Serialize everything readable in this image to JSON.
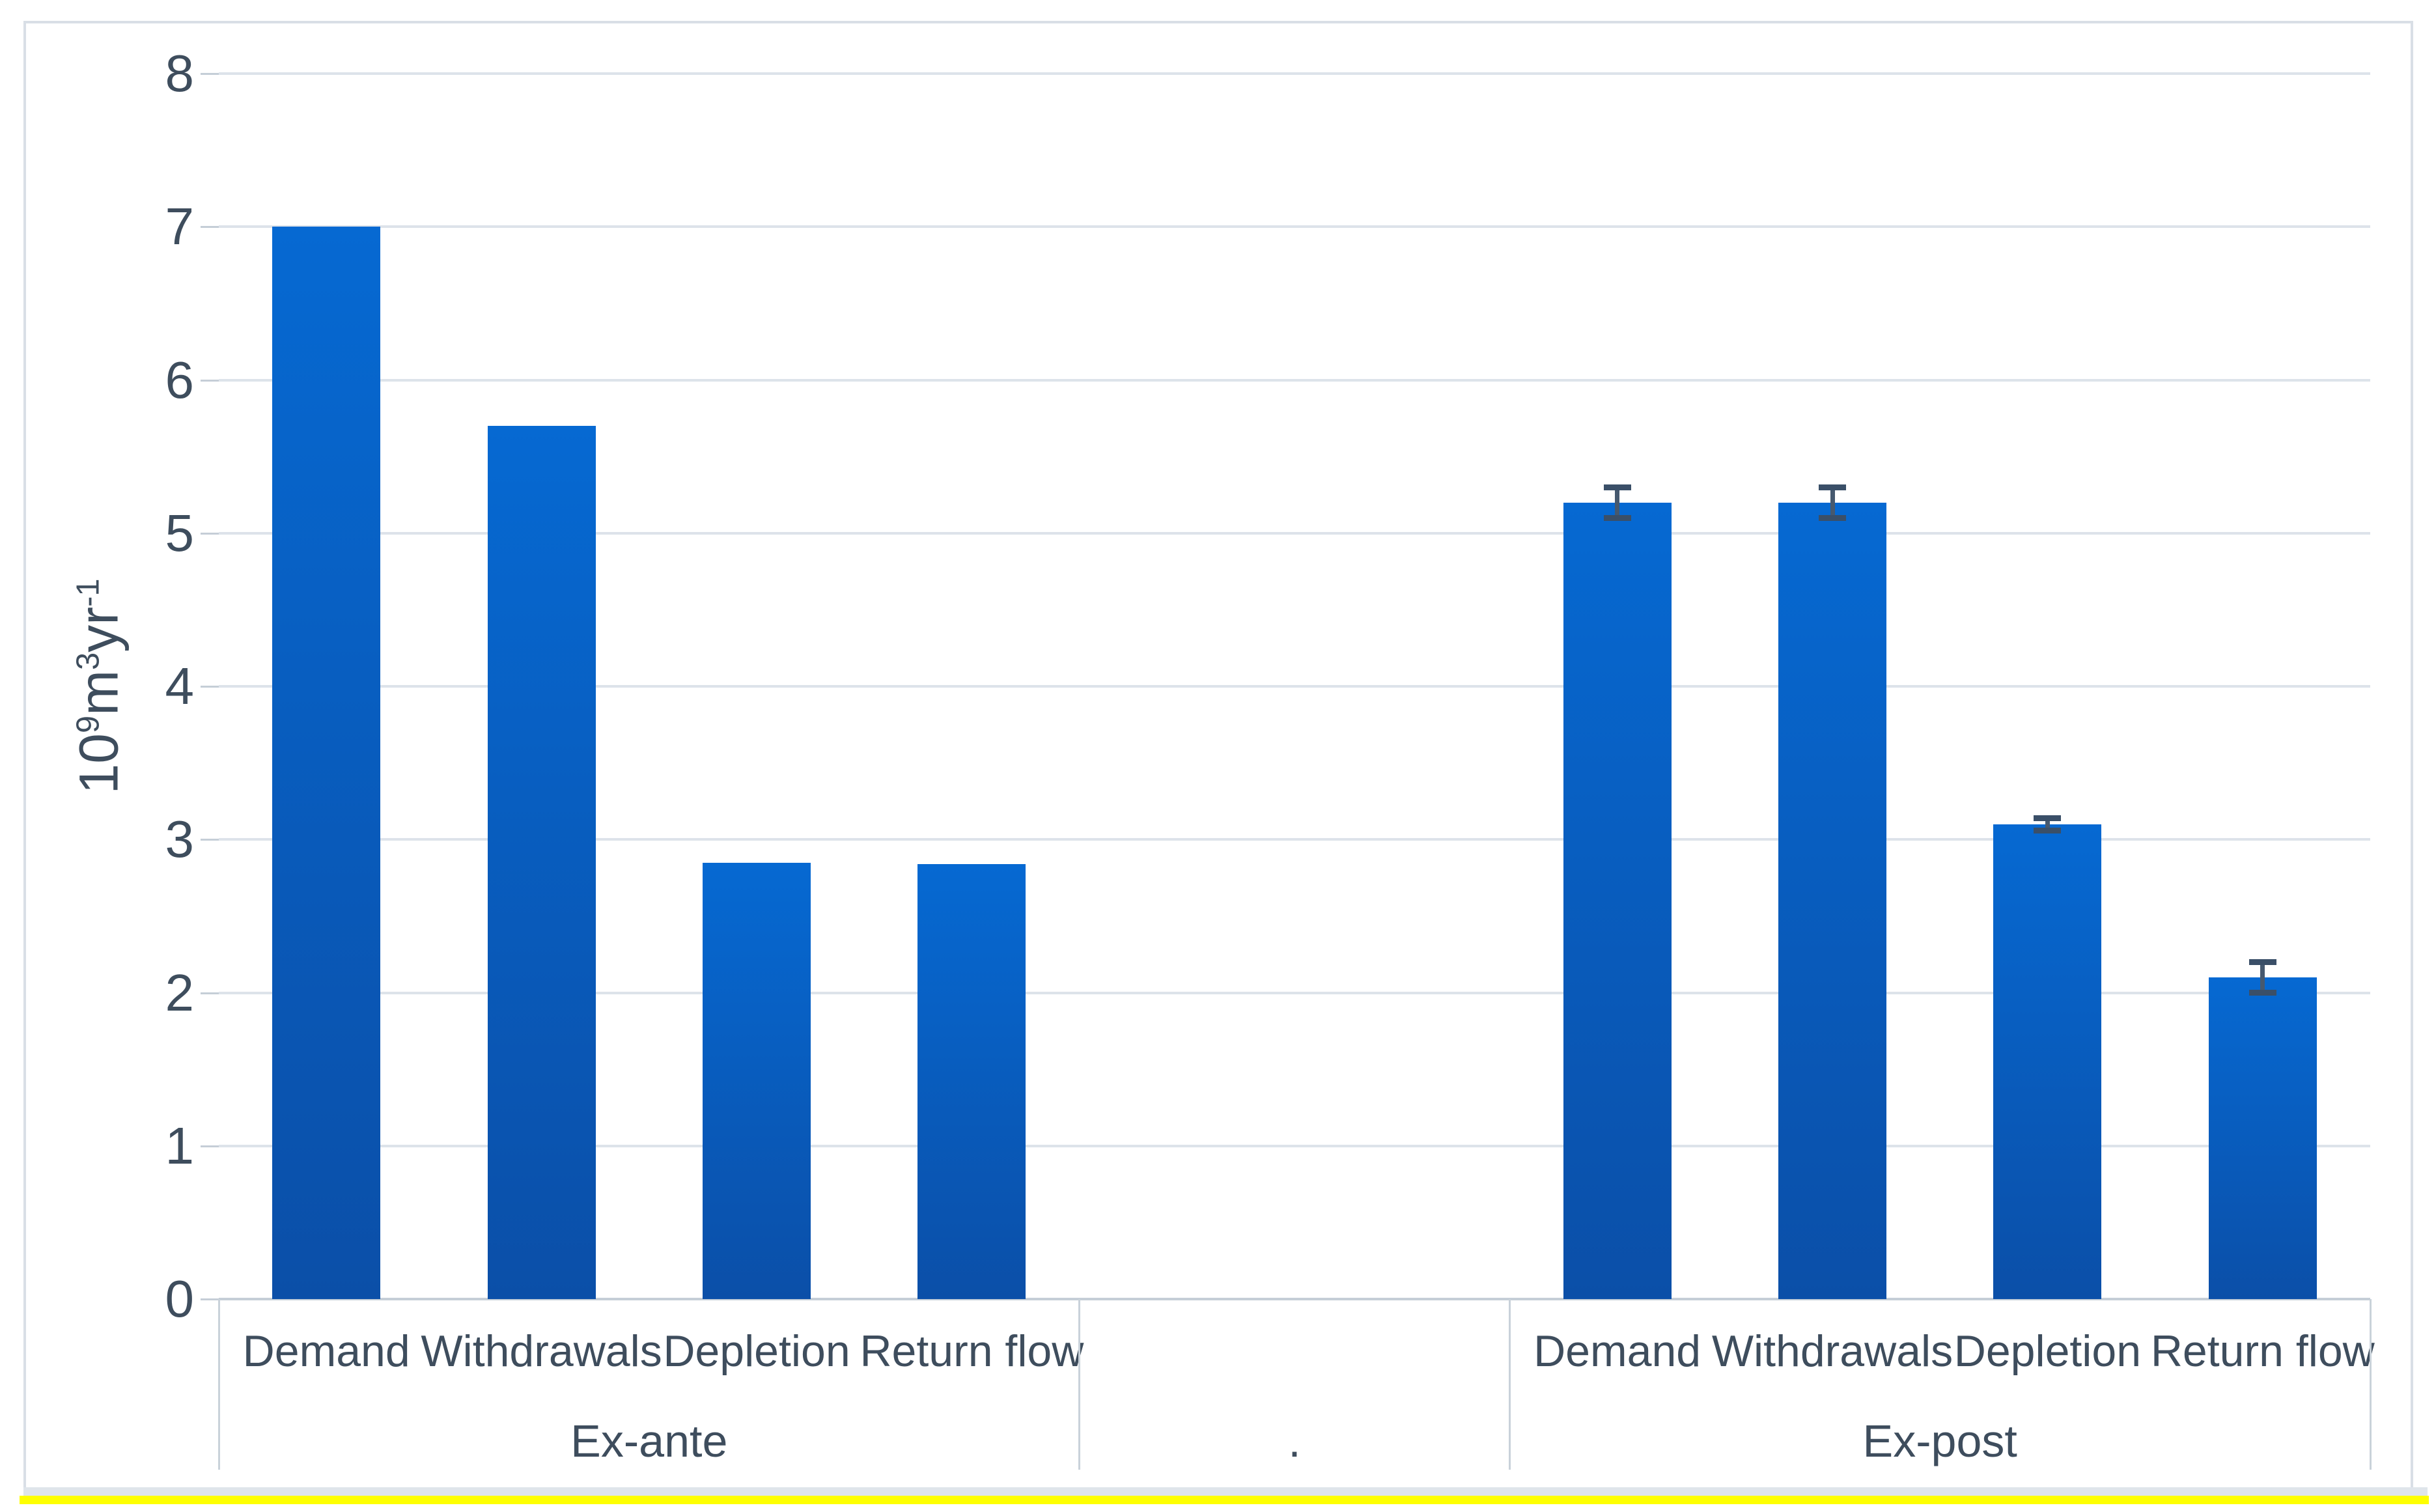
{
  "chart_data": {
    "type": "bar",
    "title": "",
    "legend": "none",
    "grid": true,
    "y_axis": {
      "label": "10⁹m³yr⁻¹",
      "label_segments": [
        {
          "t": "10"
        },
        {
          "t": "9",
          "sup": true
        },
        {
          "t": "m"
        },
        {
          "t": "3",
          "sup": true
        },
        {
          "t": "yr"
        },
        {
          "t": "-1",
          "sup": true
        }
      ],
      "min": 0,
      "max": 8,
      "step": 1,
      "tick_labels": [
        "0",
        "1",
        "2",
        "3",
        "4",
        "5",
        "6",
        "7",
        "8"
      ]
    },
    "groups": [
      {
        "label": "Ex-ante",
        "slots": 4,
        "bars": [
          {
            "category": "Demand",
            "value": 7.0,
            "error": 0
          },
          {
            "category": "Withdrawals",
            "value": 5.7,
            "error": 0
          },
          {
            "category": "Depletion",
            "value": 2.85,
            "error": 0
          },
          {
            "category": "Return flow",
            "value": 2.84,
            "error": 0
          }
        ]
      },
      {
        "label": ".",
        "slots": 2,
        "bars": []
      },
      {
        "label": "Ex-post",
        "slots": 4,
        "bars": [
          {
            "category": "Demand",
            "value": 5.2,
            "error": 0.1
          },
          {
            "category": "Withdrawals",
            "value": 5.2,
            "error": 0.1
          },
          {
            "category": "Depletion",
            "value": 3.1,
            "error": 0.04
          },
          {
            "category": "Return flow",
            "value": 2.1,
            "error": 0.1
          }
        ]
      }
    ],
    "colors": {
      "bar_top": "#0669d2",
      "bar_bottom": "#0b4fa8",
      "error_bar_line": "#46596f",
      "error_bar_cap": "#3a4f68",
      "gridline": "#dde3ea",
      "axis_line": "#c5ced7",
      "divider": "#c9d2da",
      "text": "#3e4d5d",
      "frame_border": "#d9dfe6",
      "bottom_band": "#dfe5eb",
      "highlight_line": "#feff00"
    }
  }
}
